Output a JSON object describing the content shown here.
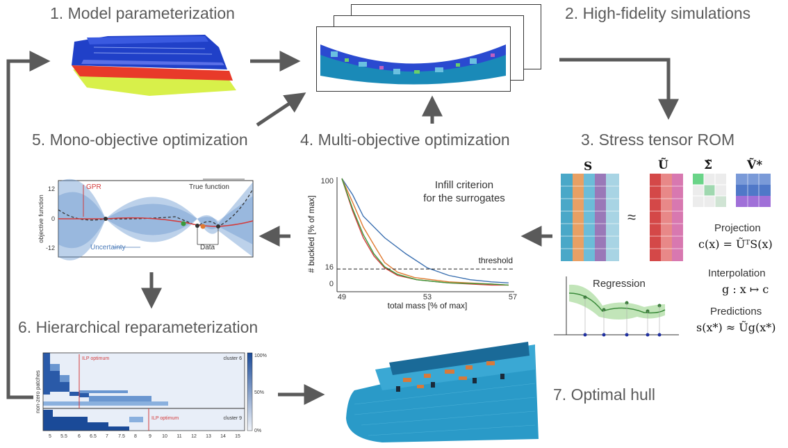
{
  "stages": {
    "s1": "1. Model parameterization",
    "s2": "2. High-fidelity simulations",
    "s3": "3. Stress tensor ROM",
    "s4": "4. Multi-objective optimization",
    "s5": "5. Mono-objective optimization",
    "s6": "6. Hierarchical reparameterization",
    "s7": "7. Optimal hull"
  },
  "rom": {
    "S": "S",
    "U": "Ũ",
    "Sigma": "Σ̃",
    "V": "Ṽ*",
    "approx": "≈",
    "projection_label": "Projection",
    "projection_eq": "c(x) = ŨᵀS(x)",
    "interpolation_label": "Interpolation",
    "interpolation_eq": "g : x ↦ c",
    "predictions_label": "Predictions",
    "predictions_eq": "s(x*) ≈ Ũg(x*)",
    "regression_label": "Regression",
    "colors": {
      "s_cols": [
        "#4aa8c8",
        "#e8a064",
        "#6cbcd8",
        "#9a78b8",
        "#a8d4e4"
      ],
      "u_cols": [
        "#d44848",
        "#e88888",
        "#d878b0"
      ],
      "v_rows": [
        "#7a9ad8",
        "#5078c8",
        "#a070d8"
      ]
    }
  },
  "mono_chart": {
    "ylabel": "objective function",
    "yticks": [
      "12",
      "0",
      "-12"
    ],
    "gpr_label": "GPR",
    "true_label": "True function",
    "uncertainty_label": "Uncertainty",
    "data_label": "Data"
  },
  "multi_chart": {
    "xlabel": "total mass [% of max]",
    "ylabel": "# buckled [% of max]",
    "xticks": [
      "49",
      "53",
      "57"
    ],
    "yticks": [
      "100",
      "16",
      "0"
    ],
    "threshold_label": "threshold",
    "infill_line1": "Infill criterion",
    "infill_line2": "for the surrogates"
  },
  "heatmap": {
    "ylabel": "non-zero patches",
    "ilp1": "ILP optimum",
    "ilp2": "ILP optimum",
    "cluster_top": "cluster 6",
    "cluster_bottom": "cluster 9",
    "xticks": [
      "5",
      "5.5",
      "6",
      "6.5",
      "7",
      "7.5",
      "8",
      "9",
      "10",
      "11",
      "12",
      "13",
      "14",
      "15"
    ],
    "cbar_ticks": [
      "100%",
      "50%",
      "0%"
    ]
  },
  "chart_data": [
    {
      "type": "line",
      "xlabel": "total mass [% of max]",
      "ylabel": "# buckled [% of max]",
      "xlim": [
        49,
        57
      ],
      "ylim": [
        0,
        100
      ],
      "threshold": 16,
      "series": [
        {
          "color": "#3a6fb0",
          "x": [
            49,
            49.5,
            50,
            51,
            52,
            53,
            54,
            55,
            56,
            56.8
          ],
          "y": [
            100,
            85,
            65,
            45,
            30,
            17,
            10,
            6,
            4,
            3
          ]
        },
        {
          "color": "#e07a30",
          "x": [
            49,
            49.5,
            50,
            50.6,
            51,
            51.6,
            52.4,
            54,
            56,
            56.8
          ],
          "y": [
            100,
            78,
            55,
            35,
            22,
            13,
            8,
            4,
            2,
            1
          ]
        },
        {
          "color": "#d43a3a",
          "x": [
            49,
            49.5,
            50,
            50.5,
            51,
            51.6,
            52.5,
            54,
            56,
            56.8
          ],
          "y": [
            100,
            70,
            45,
            28,
            17,
            10,
            6,
            3,
            1,
            1
          ]
        },
        {
          "color": "#3a9a3a",
          "x": [
            49,
            49.5,
            50,
            50.5,
            51,
            51.6,
            52.5,
            54,
            56,
            56.8
          ],
          "y": [
            100,
            72,
            48,
            30,
            18,
            11,
            6,
            3,
            2,
            1
          ]
        }
      ]
    }
  ]
}
